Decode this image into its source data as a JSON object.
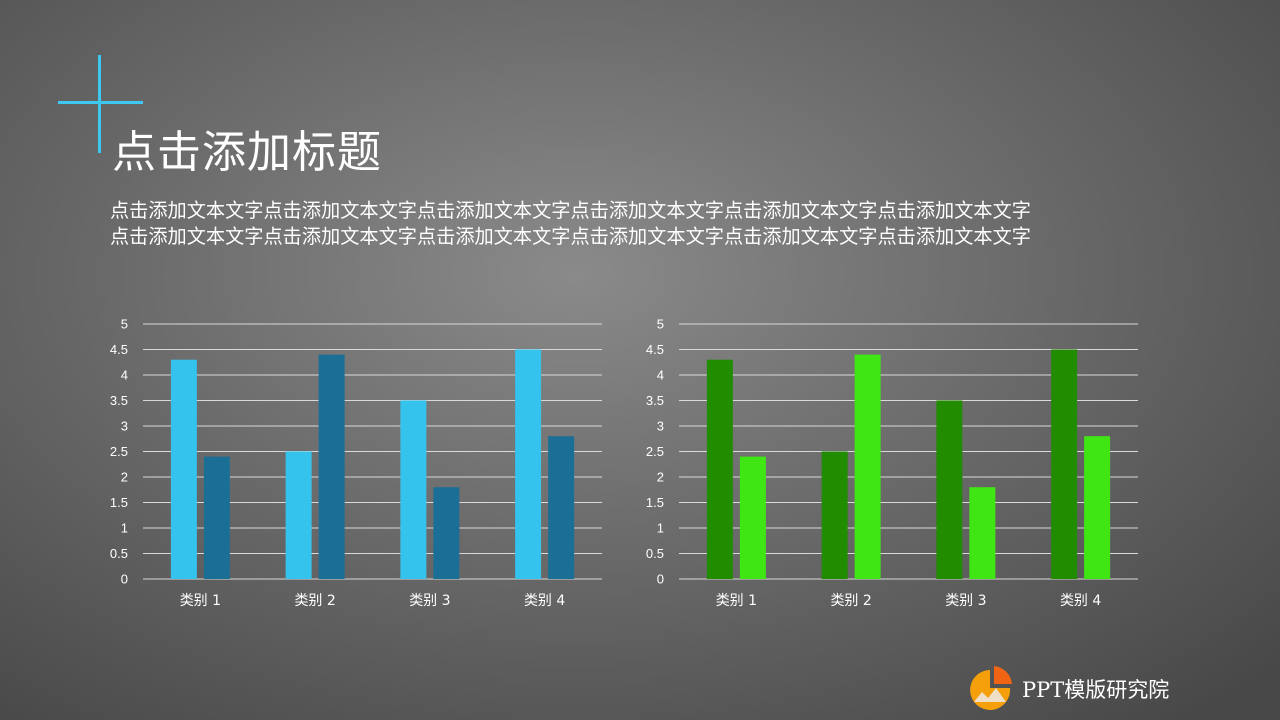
{
  "slide": {
    "title": "点击添加标题",
    "body_lines": [
      "点击添加文本文字点击添加文本文字点击添加文本文字点击添加文本文字点击添加文本文字点击添加文本文字",
      "点击添加文本文字点击添加文本文字点击添加文本文字点击添加文本文字点击添加文本文字点击添加文本文字"
    ],
    "accent_color": "#3cc8f0"
  },
  "chart_data": [
    {
      "type": "bar",
      "categories": [
        "类别 1",
        "类别 2",
        "类别 3",
        "类别 4"
      ],
      "series": [
        {
          "values": [
            4.3,
            2.5,
            3.5,
            4.5
          ],
          "color": "#34c3ec"
        },
        {
          "values": [
            2.4,
            4.4,
            1.8,
            2.8
          ],
          "color": "#1b6f96"
        }
      ],
      "ylim": [
        0,
        5
      ],
      "yticks": [
        "0",
        "0.5",
        "1",
        "1.5",
        "2",
        "2.5",
        "3",
        "3.5",
        "4",
        "4.5",
        "5"
      ],
      "grid": true
    },
    {
      "type": "bar",
      "categories": [
        "类别 1",
        "类别 2",
        "类别 3",
        "类别 4"
      ],
      "series": [
        {
          "values": [
            4.3,
            2.5,
            3.5,
            4.5
          ],
          "color": "#228c00"
        },
        {
          "values": [
            2.4,
            4.4,
            1.8,
            2.8
          ],
          "color": "#40e614"
        }
      ],
      "ylim": [
        0,
        5
      ],
      "yticks": [
        "0",
        "0.5",
        "1",
        "1.5",
        "2",
        "2.5",
        "3",
        "3.5",
        "4",
        "4.5",
        "5"
      ],
      "grid": true
    }
  ],
  "logo": {
    "text": "PPT模版研究院",
    "icon": "pie-chart-logo-icon",
    "colors": [
      "#f5a00a",
      "#f06414"
    ]
  }
}
